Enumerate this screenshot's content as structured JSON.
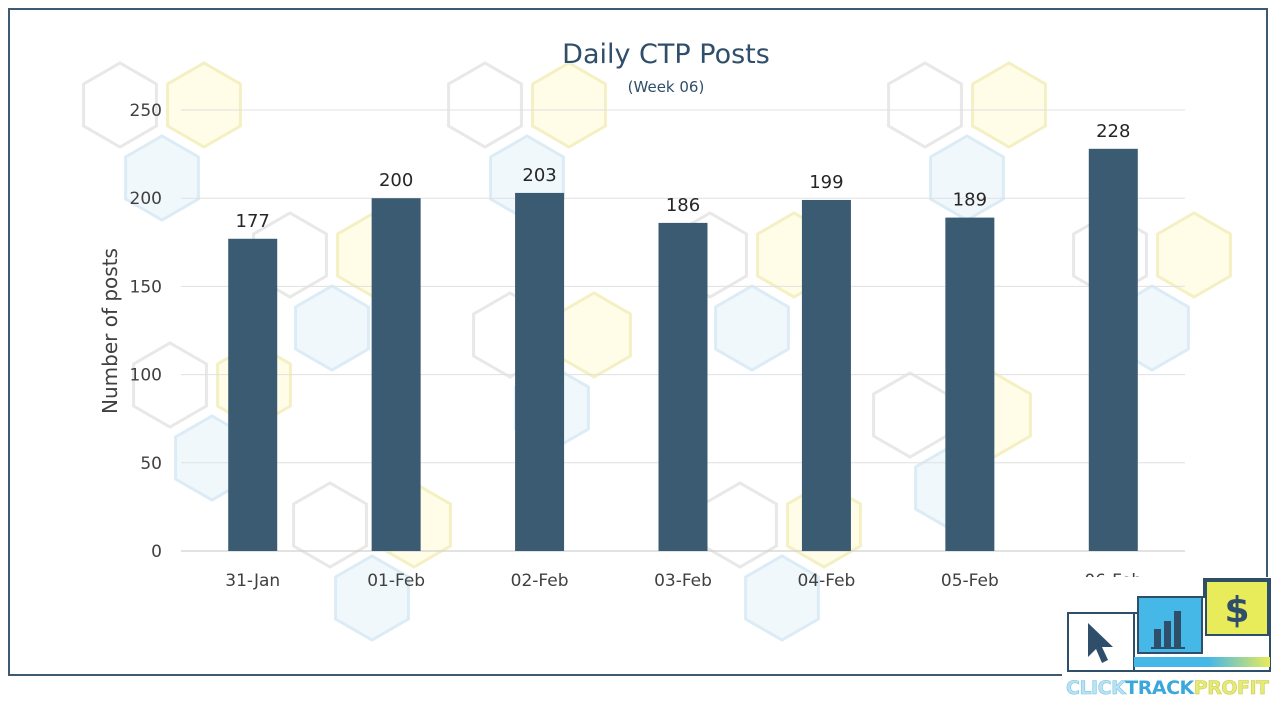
{
  "chart_data": {
    "type": "bar",
    "title": "Daily CTP Posts",
    "subtitle": "(Week 06)",
    "xlabel": "",
    "ylabel": "Number of posts",
    "categories": [
      "31-Jan",
      "01-Feb",
      "02-Feb",
      "03-Feb",
      "04-Feb",
      "05-Feb",
      "06-Feb"
    ],
    "values": [
      177,
      200,
      203,
      186,
      199,
      189,
      228
    ],
    "ylim": [
      0,
      250
    ],
    "yticks": [
      0,
      50,
      100,
      150,
      200,
      250
    ],
    "grid": true,
    "legend": "none",
    "data_labels": true
  },
  "colors": {
    "bar": "#3b5b73",
    "frame": "#3d5a72",
    "title": "#2f4e6a",
    "logo_border": "#2f4e6a",
    "logo_blue": "#45b8e8",
    "logo_yellow": "#e8eb5a"
  },
  "logo": {
    "word_1": "CLICK",
    "word_2": "TRACK",
    "word_3": "PROFIT",
    "icons": [
      "cursor-icon",
      "bar-chart-icon",
      "dollar-icon"
    ]
  }
}
